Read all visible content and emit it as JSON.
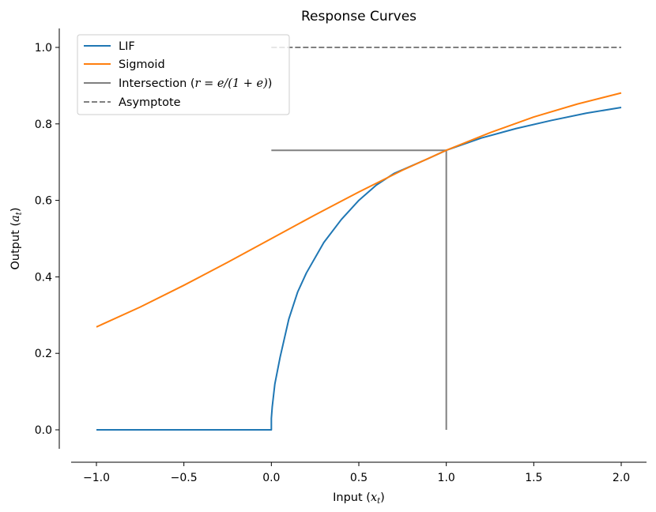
{
  "chart_data": {
    "type": "line",
    "title": "Response Curves",
    "xlabel": {
      "prefix": "Input (",
      "var": "x",
      "sub": "t",
      "suffix": ")"
    },
    "ylabel": {
      "prefix": "Output (",
      "var": "a",
      "sub": "t",
      "suffix": ")"
    },
    "xlim": [
      -1.1,
      2.15
    ],
    "ylim": [
      -0.05,
      1.05
    ],
    "xticks": [
      -1.0,
      -0.5,
      0.0,
      0.5,
      1.0,
      1.5,
      2.0
    ],
    "xtick_labels": [
      "−1.0",
      "−0.5",
      "0.0",
      "0.5",
      "1.0",
      "1.5",
      "2.0"
    ],
    "yticks": [
      0.0,
      0.2,
      0.4,
      0.6,
      0.8,
      1.0
    ],
    "ytick_labels": [
      "0.0",
      "0.2",
      "0.4",
      "0.6",
      "0.8",
      "1.0"
    ],
    "grid": false,
    "legend_position": "upper-left",
    "series": [
      {
        "name": "LIF",
        "color": "#1f77b4",
        "style": "solid",
        "x": [
          -1.0,
          -0.5,
          0.0,
          0.0,
          0.005,
          0.02,
          0.05,
          0.1,
          0.15,
          0.2,
          0.3,
          0.4,
          0.5,
          0.6,
          0.7,
          0.8,
          0.9,
          1.0,
          1.2,
          1.4,
          1.6,
          1.8,
          2.0
        ],
        "y": [
          0.0,
          0.0,
          0.0,
          0.03,
          0.06,
          0.12,
          0.19,
          0.29,
          0.36,
          0.41,
          0.49,
          0.55,
          0.6,
          0.64,
          0.67,
          0.69,
          0.71,
          0.731,
          0.763,
          0.788,
          0.809,
          0.828,
          0.843
        ]
      },
      {
        "name": "Sigmoid",
        "color": "#ff7f0e",
        "style": "solid",
        "x": [
          -1.0,
          -0.75,
          -0.5,
          -0.25,
          0.0,
          0.25,
          0.5,
          0.75,
          1.0,
          1.25,
          1.5,
          1.75,
          2.0
        ],
        "y": [
          0.269,
          0.321,
          0.378,
          0.438,
          0.5,
          0.562,
          0.622,
          0.679,
          0.731,
          0.777,
          0.818,
          0.852,
          0.881
        ]
      },
      {
        "name": "Intersection",
        "legend_prefix": "Intersection (",
        "legend_math": "r = e/(1 + e)",
        "legend_suffix": ")",
        "color": "#808080",
        "style": "solid",
        "segments": [
          {
            "x": [
              0.0,
              1.0
            ],
            "y": [
              0.731,
              0.731
            ]
          },
          {
            "x": [
              1.0,
              1.0
            ],
            "y": [
              0.0,
              0.731
            ]
          }
        ]
      },
      {
        "name": "Asymptote",
        "color": "#808080",
        "style": "dashed",
        "x": [
          0.0,
          2.0
        ],
        "y": [
          1.0,
          1.0
        ]
      }
    ]
  }
}
